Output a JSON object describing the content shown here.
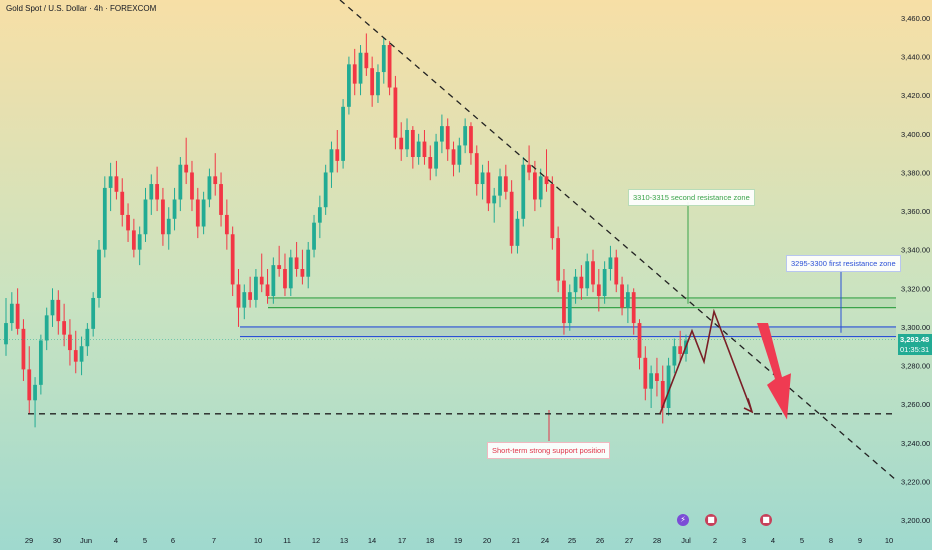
{
  "chart_data": {
    "type": "candlestick",
    "title": "Gold Spot / U.S. Dollar · 4h · FOREXCOM",
    "y_axis": {
      "ticks": [
        3460,
        3440,
        3420,
        3400,
        3380,
        3360,
        3340,
        3320,
        3300,
        3280,
        3260,
        3240,
        3220,
        3200
      ],
      "tick_labels": [
        "3,460.00",
        "3,440.00",
        "3,420.00",
        "3,400.00",
        "3,380.00",
        "3,360.00",
        "3,340.00",
        "3,320.00",
        "3,300.00",
        "3,280.00",
        "3,260.00",
        "3,240.00",
        "3,220.00",
        "3,200.00"
      ],
      "ylim": [
        3196,
        3466
      ],
      "position": "right"
    },
    "x_axis": {
      "tick_labels": [
        "29",
        "30",
        "Jun",
        "4",
        "5",
        "6",
        "7",
        "10",
        "11",
        "12",
        "13",
        "14",
        "17",
        "18",
        "19",
        "20",
        "21",
        "24",
        "25",
        "26",
        "27",
        "28",
        "Jul",
        "2",
        "3",
        "4",
        "5",
        "8",
        "9",
        "10"
      ]
    },
    "candles": [
      [
        3291,
        3315,
        3285,
        3302
      ],
      [
        3302,
        3318,
        3298,
        3312
      ],
      [
        3312,
        3320,
        3296,
        3299
      ],
      [
        3299,
        3304,
        3272,
        3278
      ],
      [
        3278,
        3290,
        3255,
        3262
      ],
      [
        3262,
        3274,
        3248,
        3270
      ],
      [
        3270,
        3296,
        3265,
        3293
      ],
      [
        3293,
        3310,
        3288,
        3306
      ],
      [
        3306,
        3320,
        3300,
        3314
      ],
      [
        3314,
        3319,
        3296,
        3303
      ],
      [
        3303,
        3312,
        3290,
        3296
      ],
      [
        3296,
        3304,
        3280,
        3288
      ],
      [
        3288,
        3298,
        3276,
        3282
      ],
      [
        3282,
        3295,
        3275,
        3290
      ],
      [
        3290,
        3302,
        3285,
        3299
      ],
      [
        3299,
        3318,
        3295,
        3315
      ],
      [
        3315,
        3345,
        3310,
        3340
      ],
      [
        3340,
        3378,
        3336,
        3372
      ],
      [
        3372,
        3385,
        3360,
        3378
      ],
      [
        3378,
        3386,
        3366,
        3370
      ],
      [
        3370,
        3377,
        3352,
        3358
      ],
      [
        3358,
        3364,
        3344,
        3350
      ],
      [
        3350,
        3356,
        3336,
        3340
      ],
      [
        3340,
        3352,
        3332,
        3348
      ],
      [
        3348,
        3372,
        3344,
        3366
      ],
      [
        3366,
        3379,
        3358,
        3374
      ],
      [
        3374,
        3383,
        3360,
        3366
      ],
      [
        3366,
        3372,
        3342,
        3348
      ],
      [
        3348,
        3362,
        3340,
        3356
      ],
      [
        3356,
        3372,
        3350,
        3366
      ],
      [
        3366,
        3388,
        3360,
        3384
      ],
      [
        3384,
        3398,
        3374,
        3380
      ],
      [
        3380,
        3386,
        3360,
        3366
      ],
      [
        3366,
        3372,
        3346,
        3352
      ],
      [
        3352,
        3370,
        3348,
        3366
      ],
      [
        3366,
        3382,
        3362,
        3378
      ],
      [
        3378,
        3390,
        3368,
        3374
      ],
      [
        3374,
        3380,
        3352,
        3358
      ],
      [
        3358,
        3366,
        3340,
        3348
      ],
      [
        3348,
        3352,
        3316,
        3322
      ],
      [
        3322,
        3330,
        3300,
        3310
      ],
      [
        3310,
        3322,
        3304,
        3318
      ],
      [
        3318,
        3326,
        3310,
        3314
      ],
      [
        3314,
        3330,
        3310,
        3326
      ],
      [
        3326,
        3338,
        3318,
        3322
      ],
      [
        3322,
        3330,
        3312,
        3316
      ],
      [
        3316,
        3336,
        3312,
        3332
      ],
      [
        3332,
        3342,
        3326,
        3330
      ],
      [
        3330,
        3338,
        3316,
        3320
      ],
      [
        3320,
        3340,
        3316,
        3336
      ],
      [
        3336,
        3344,
        3326,
        3330
      ],
      [
        3330,
        3340,
        3322,
        3326
      ],
      [
        3326,
        3344,
        3320,
        3340
      ],
      [
        3340,
        3358,
        3336,
        3354
      ],
      [
        3354,
        3368,
        3346,
        3362
      ],
      [
        3362,
        3384,
        3358,
        3380
      ],
      [
        3380,
        3396,
        3372,
        3392
      ],
      [
        3392,
        3402,
        3380,
        3386
      ],
      [
        3386,
        3418,
        3382,
        3414
      ],
      [
        3414,
        3440,
        3410,
        3436
      ],
      [
        3436,
        3444,
        3420,
        3426
      ],
      [
        3426,
        3446,
        3420,
        3442
      ],
      [
        3442,
        3452,
        3430,
        3434
      ],
      [
        3434,
        3440,
        3414,
        3420
      ],
      [
        3420,
        3436,
        3416,
        3432
      ],
      [
        3432,
        3450,
        3426,
        3446
      ],
      [
        3446,
        3448,
        3420,
        3424
      ],
      [
        3424,
        3430,
        3392,
        3398
      ],
      [
        3398,
        3406,
        3386,
        3392
      ],
      [
        3392,
        3408,
        3388,
        3402
      ],
      [
        3402,
        3404,
        3382,
        3388
      ],
      [
        3388,
        3400,
        3384,
        3396
      ],
      [
        3396,
        3402,
        3384,
        3388
      ],
      [
        3388,
        3394,
        3376,
        3382
      ],
      [
        3382,
        3400,
        3378,
        3396
      ],
      [
        3396,
        3410,
        3390,
        3404
      ],
      [
        3404,
        3408,
        3386,
        3392
      ],
      [
        3392,
        3396,
        3378,
        3384
      ],
      [
        3384,
        3398,
        3380,
        3394
      ],
      [
        3394,
        3408,
        3390,
        3404
      ],
      [
        3404,
        3406,
        3384,
        3390
      ],
      [
        3390,
        3394,
        3368,
        3374
      ],
      [
        3374,
        3384,
        3366,
        3380
      ],
      [
        3380,
        3386,
        3360,
        3364
      ],
      [
        3364,
        3372,
        3354,
        3368
      ],
      [
        3368,
        3382,
        3362,
        3378
      ],
      [
        3378,
        3384,
        3366,
        3370
      ],
      [
        3370,
        3376,
        3338,
        3342
      ],
      [
        3342,
        3360,
        3338,
        3356
      ],
      [
        3356,
        3388,
        3352,
        3384
      ],
      [
        3384,
        3394,
        3376,
        3380
      ],
      [
        3380,
        3386,
        3360,
        3366
      ],
      [
        3366,
        3382,
        3362,
        3378
      ],
      [
        3378,
        3392,
        3370,
        3374
      ],
      [
        3374,
        3378,
        3340,
        3346
      ],
      [
        3346,
        3352,
        3318,
        3324
      ],
      [
        3324,
        3330,
        3296,
        3302
      ],
      [
        3302,
        3322,
        3298,
        3318
      ],
      [
        3318,
        3330,
        3312,
        3326
      ],
      [
        3326,
        3332,
        3314,
        3320
      ],
      [
        3320,
        3338,
        3316,
        3334
      ],
      [
        3334,
        3340,
        3318,
        3322
      ],
      [
        3322,
        3330,
        3308,
        3316
      ],
      [
        3316,
        3334,
        3312,
        3330
      ],
      [
        3330,
        3342,
        3324,
        3336
      ],
      [
        3336,
        3340,
        3318,
        3322
      ],
      [
        3322,
        3326,
        3306,
        3310
      ],
      [
        3310,
        3322,
        3302,
        3318
      ],
      [
        3318,
        3320,
        3296,
        3302
      ],
      [
        3302,
        3304,
        3278,
        3284
      ],
      [
        3284,
        3290,
        3262,
        3268
      ],
      [
        3268,
        3280,
        3258,
        3276
      ],
      [
        3276,
        3284,
        3264,
        3272
      ],
      [
        3272,
        3280,
        3250,
        3258
      ],
      [
        3258,
        3284,
        3254,
        3280
      ],
      [
        3280,
        3294,
        3276,
        3290
      ],
      [
        3290,
        3298,
        3282,
        3286
      ],
      [
        3286,
        3296,
        3282,
        3293
      ]
    ],
    "last_price": "3,293.48",
    "countdown": "01:35:31",
    "zones": [
      {
        "label": "3310-3315 second resistance zone",
        "from": 3310,
        "to": 3315,
        "color": "#3aa34a"
      },
      {
        "label": "3295-3300 first resistance zone",
        "from": 3295,
        "to": 3300,
        "color": "#2a4fd6"
      }
    ],
    "support": {
      "label": "Short-term strong support position",
      "value": 3255
    },
    "colors": {
      "up": "#22ab94",
      "down": "#f23645",
      "trend": "#222222",
      "projection": "#7a1e26",
      "arrow": "#ef3b52"
    }
  }
}
